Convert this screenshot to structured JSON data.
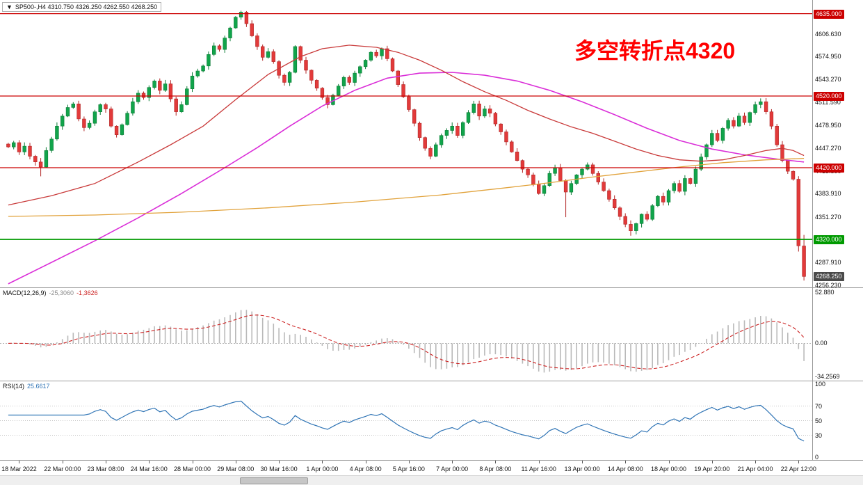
{
  "window": {
    "dropdown_icon": "▼",
    "title": "SP500-,H4 4310.750 4326.250 4262.550 4268.250"
  },
  "annotation": {
    "text": "多空转折点4320",
    "color": "#ff0000"
  },
  "chart_data": {
    "type": "candlestick",
    "symbol": "SP500-",
    "timeframe": "H4",
    "quote": {
      "open": 4310.75,
      "high": 4326.25,
      "low": 4262.55,
      "close": 4268.25
    },
    "style": {
      "bull": {
        "fill": "#11a44b",
        "stroke": "#0b7c35"
      },
      "bear": {
        "fill": "#e23a3a",
        "stroke": "#b02525"
      }
    },
    "price_axis": {
      "min": 4253,
      "max": 4654,
      "ticks": [
        4606.63,
        4574.95,
        4543.27,
        4511.59,
        4478.95,
        4447.27,
        4415.59,
        4383.91,
        4351.27,
        4287.91,
        4256.23
      ]
    },
    "hlines": [
      {
        "price": 4635.0,
        "label": "4635.000",
        "color": "#cc0000",
        "width": 1.3
      },
      {
        "price": 4520.0,
        "label": "4520.000",
        "color": "#cc0000",
        "width": 1.3
      },
      {
        "price": 4420.0,
        "label": "4420.000",
        "color": "#cc0000",
        "width": 1.3
      },
      {
        "price": 4320.0,
        "label": "4320.000",
        "color": "#009a00",
        "width": 1.8
      }
    ],
    "current_price": {
      "value": 4268.25,
      "label": "4268.250",
      "badge_color": "#4a4a4a"
    },
    "time_labels": [
      "18 Mar 2022",
      "22 Mar 00:00",
      "23 Mar 08:00",
      "24 Mar 16:00",
      "28 Mar 00:00",
      "29 Mar 08:00",
      "30 Mar 16:00",
      "1 Apr 00:00",
      "4 Apr 08:00",
      "5 Apr 16:00",
      "7 Apr 00:00",
      "8 Apr 08:00",
      "11 Apr 16:00",
      "13 Apr 00:00",
      "14 Apr 08:00",
      "18 Apr 00:00",
      "19 Apr 20:00",
      "21 Apr 04:00",
      "22 Apr 12:00"
    ],
    "label_start_index": 2,
    "label_step": 8,
    "candles": {
      "closes": [
        4449,
        4455,
        4442,
        4450,
        4436,
        4428,
        4421,
        4444,
        4460,
        4478,
        4492,
        4504,
        4509,
        4488,
        4476,
        4482,
        4498,
        4508,
        4502,
        4478,
        4466,
        4480,
        4496,
        4512,
        4524,
        4518,
        4532,
        4541,
        4528,
        4537,
        4516,
        4498,
        4508,
        4530,
        4548,
        4555,
        4562,
        4578,
        4590,
        4585,
        4601,
        4615,
        4630,
        4637,
        4621,
        4604,
        4589,
        4574,
        4582,
        4568,
        4549,
        4539,
        4553,
        4589,
        4570,
        4556,
        4542,
        4531,
        4518,
        4508,
        4521,
        4534,
        4546,
        4539,
        4552,
        4561,
        4570,
        4581,
        4576,
        4586,
        4572,
        4555,
        4536,
        4519,
        4501,
        4482,
        4462,
        4447,
        4436,
        4452,
        4465,
        4472,
        4478,
        4465,
        4483,
        4497,
        4509,
        4492,
        4502,
        4496,
        4481,
        4470,
        4456,
        4442,
        4430,
        4418,
        4410,
        4397,
        4384,
        4395,
        4412,
        4420,
        4402,
        4386,
        4398,
        4410,
        4418,
        4424,
        4412,
        4400,
        4388,
        4376,
        4364,
        4352,
        4341,
        4332,
        4342,
        4355,
        4348,
        4367,
        4380,
        4372,
        4388,
        4398,
        4387,
        4405,
        4398,
        4418,
        4435,
        4452,
        4468,
        4458,
        4475,
        4486,
        4478,
        4492,
        4483,
        4497,
        4508,
        4512,
        4498,
        4478,
        4452,
        4430,
        4415,
        4404,
        4311,
        4268.25
      ],
      "overrides": {
        "6": {
          "low": 4408
        },
        "43": {
          "high": 4639
        },
        "103": {
          "low": 4351
        },
        "115": {
          "low": 4325
        },
        "146": {
          "low": 4303
        },
        "147": {
          "open": 4310.75,
          "high": 4326.25,
          "low": 4262.55,
          "close": 4268.25
        }
      }
    },
    "ma_lines": [
      {
        "name": "ma-magenta",
        "color": "#da2ed8",
        "width": 1.6,
        "points": [
          [
            0,
            4258
          ],
          [
            8,
            4288
          ],
          [
            16,
            4318
          ],
          [
            24,
            4350
          ],
          [
            32,
            4384
          ],
          [
            40,
            4420
          ],
          [
            46,
            4448
          ],
          [
            52,
            4478
          ],
          [
            58,
            4506
          ],
          [
            64,
            4528
          ],
          [
            70,
            4545
          ],
          [
            76,
            4552
          ],
          [
            82,
            4553
          ],
          [
            88,
            4549
          ],
          [
            94,
            4541
          ],
          [
            100,
            4528
          ],
          [
            106,
            4512
          ],
          [
            112,
            4494
          ],
          [
            118,
            4475
          ],
          [
            124,
            4458
          ],
          [
            130,
            4446
          ],
          [
            136,
            4438
          ],
          [
            142,
            4432
          ],
          [
            147,
            4428
          ]
        ]
      },
      {
        "name": "ma-red",
        "color": "#c93a3a",
        "width": 1.3,
        "points": [
          [
            0,
            4368
          ],
          [
            8,
            4381
          ],
          [
            16,
            4398
          ],
          [
            24,
            4428
          ],
          [
            30,
            4452
          ],
          [
            36,
            4478
          ],
          [
            42,
            4515
          ],
          [
            48,
            4550
          ],
          [
            54,
            4575
          ],
          [
            58,
            4586
          ],
          [
            63,
            4591
          ],
          [
            68,
            4588
          ],
          [
            72,
            4581
          ],
          [
            76,
            4570
          ],
          [
            80,
            4556
          ],
          [
            84,
            4540
          ],
          [
            88,
            4526
          ],
          [
            92,
            4514
          ],
          [
            96,
            4500
          ],
          [
            100,
            4488
          ],
          [
            104,
            4477
          ],
          [
            108,
            4468
          ],
          [
            112,
            4457
          ],
          [
            116,
            4446
          ],
          [
            120,
            4437
          ],
          [
            124,
            4431
          ],
          [
            128,
            4429
          ],
          [
            132,
            4431
          ],
          [
            136,
            4437
          ],
          [
            140,
            4444
          ],
          [
            143,
            4447
          ],
          [
            145,
            4444
          ],
          [
            147,
            4437
          ]
        ]
      },
      {
        "name": "ma-orange",
        "color": "#e1a23b",
        "width": 1.3,
        "points": [
          [
            0,
            4352
          ],
          [
            16,
            4354
          ],
          [
            32,
            4358
          ],
          [
            48,
            4364
          ],
          [
            64,
            4372
          ],
          [
            80,
            4382
          ],
          [
            92,
            4392
          ],
          [
            100,
            4399
          ],
          [
            108,
            4407
          ],
          [
            116,
            4414
          ],
          [
            124,
            4421
          ],
          [
            132,
            4427
          ],
          [
            140,
            4431
          ],
          [
            147,
            4433
          ]
        ]
      }
    ],
    "macd": {
      "title": "MACD(12,26,9)",
      "value_text": "-25,3060",
      "signal_text": "-1,3626",
      "params": [
        12,
        26,
        9
      ],
      "hist_color": "#b9b9b9",
      "signal_color": "#cc2222",
      "axis": {
        "max": 52.88,
        "min": -34.2569,
        "ticks": [
          {
            "v": 52.88,
            "t": "52.880"
          },
          {
            "v": 0,
            "t": "0.00"
          },
          {
            "v": -34.2569,
            "t": "-34.2569"
          }
        ]
      }
    },
    "rsi": {
      "title": "RSI(14)",
      "value_text": "25.6617",
      "period": 14,
      "line_color": "#2f74b5",
      "levels": [
        70,
        50,
        30
      ],
      "axis_ticks": [
        {
          "v": 100,
          "t": "100"
        },
        {
          "v": 70,
          "t": "70"
        },
        {
          "v": 50,
          "t": "50"
        },
        {
          "v": 30,
          "t": "30"
        },
        {
          "v": 0,
          "t": "0"
        }
      ]
    }
  }
}
